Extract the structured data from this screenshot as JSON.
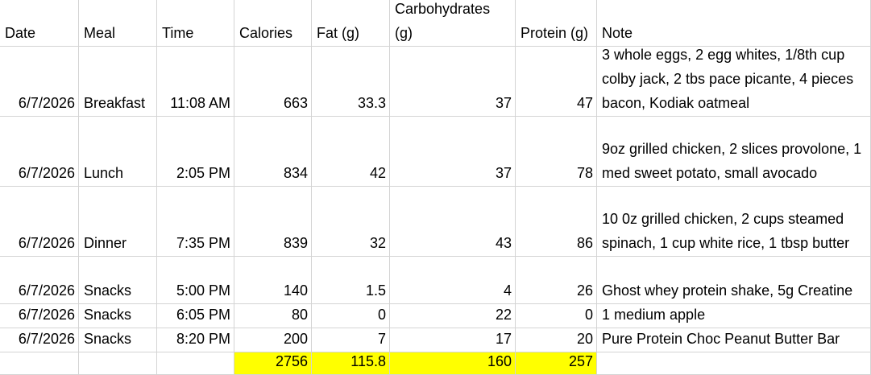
{
  "table": {
    "header": [
      "Date",
      "Meal",
      "Time",
      "Calories",
      "Fat (g)",
      "Carbohydrates (g)",
      "Protein (g)",
      "Note"
    ],
    "rows": [
      [
        "6/7/2026",
        "Breakfast",
        "11:08 AM",
        663,
        33.3,
        37,
        47,
        "3 whole eggs, 2 egg whites, 1/8th cup colby jack, 2 tbs pace picante, 4 pieces bacon, Kodiak oatmeal"
      ],
      [
        "6/7/2026",
        "Lunch",
        "2:05 PM",
        834,
        42,
        37,
        78,
        "9oz grilled chicken, 2 slices provolone, 1 med sweet potato, small avocado"
      ],
      [
        "6/7/2026",
        "Dinner",
        "7:35 PM",
        839,
        32,
        43,
        86,
        "10 0z grilled chicken, 2 cups steamed spinach, 1 cup white rice, 1 tbsp butter"
      ],
      [
        "6/7/2026",
        "Snacks",
        "5:00 PM",
        140,
        1.5,
        4,
        26,
        "Ghost whey protein shake, 5g Creatine"
      ],
      [
        "6/7/2026",
        "Snacks",
        "6:05 PM",
        80,
        0,
        22,
        0,
        "1 medium apple"
      ],
      [
        "6/7/2026",
        "Snacks",
        "8:20 PM",
        200,
        7,
        17,
        20,
        "Pure Protein Choc Peanut Butter Bar"
      ]
    ],
    "totals": [
      2756,
      115.8,
      160,
      257
    ]
  }
}
